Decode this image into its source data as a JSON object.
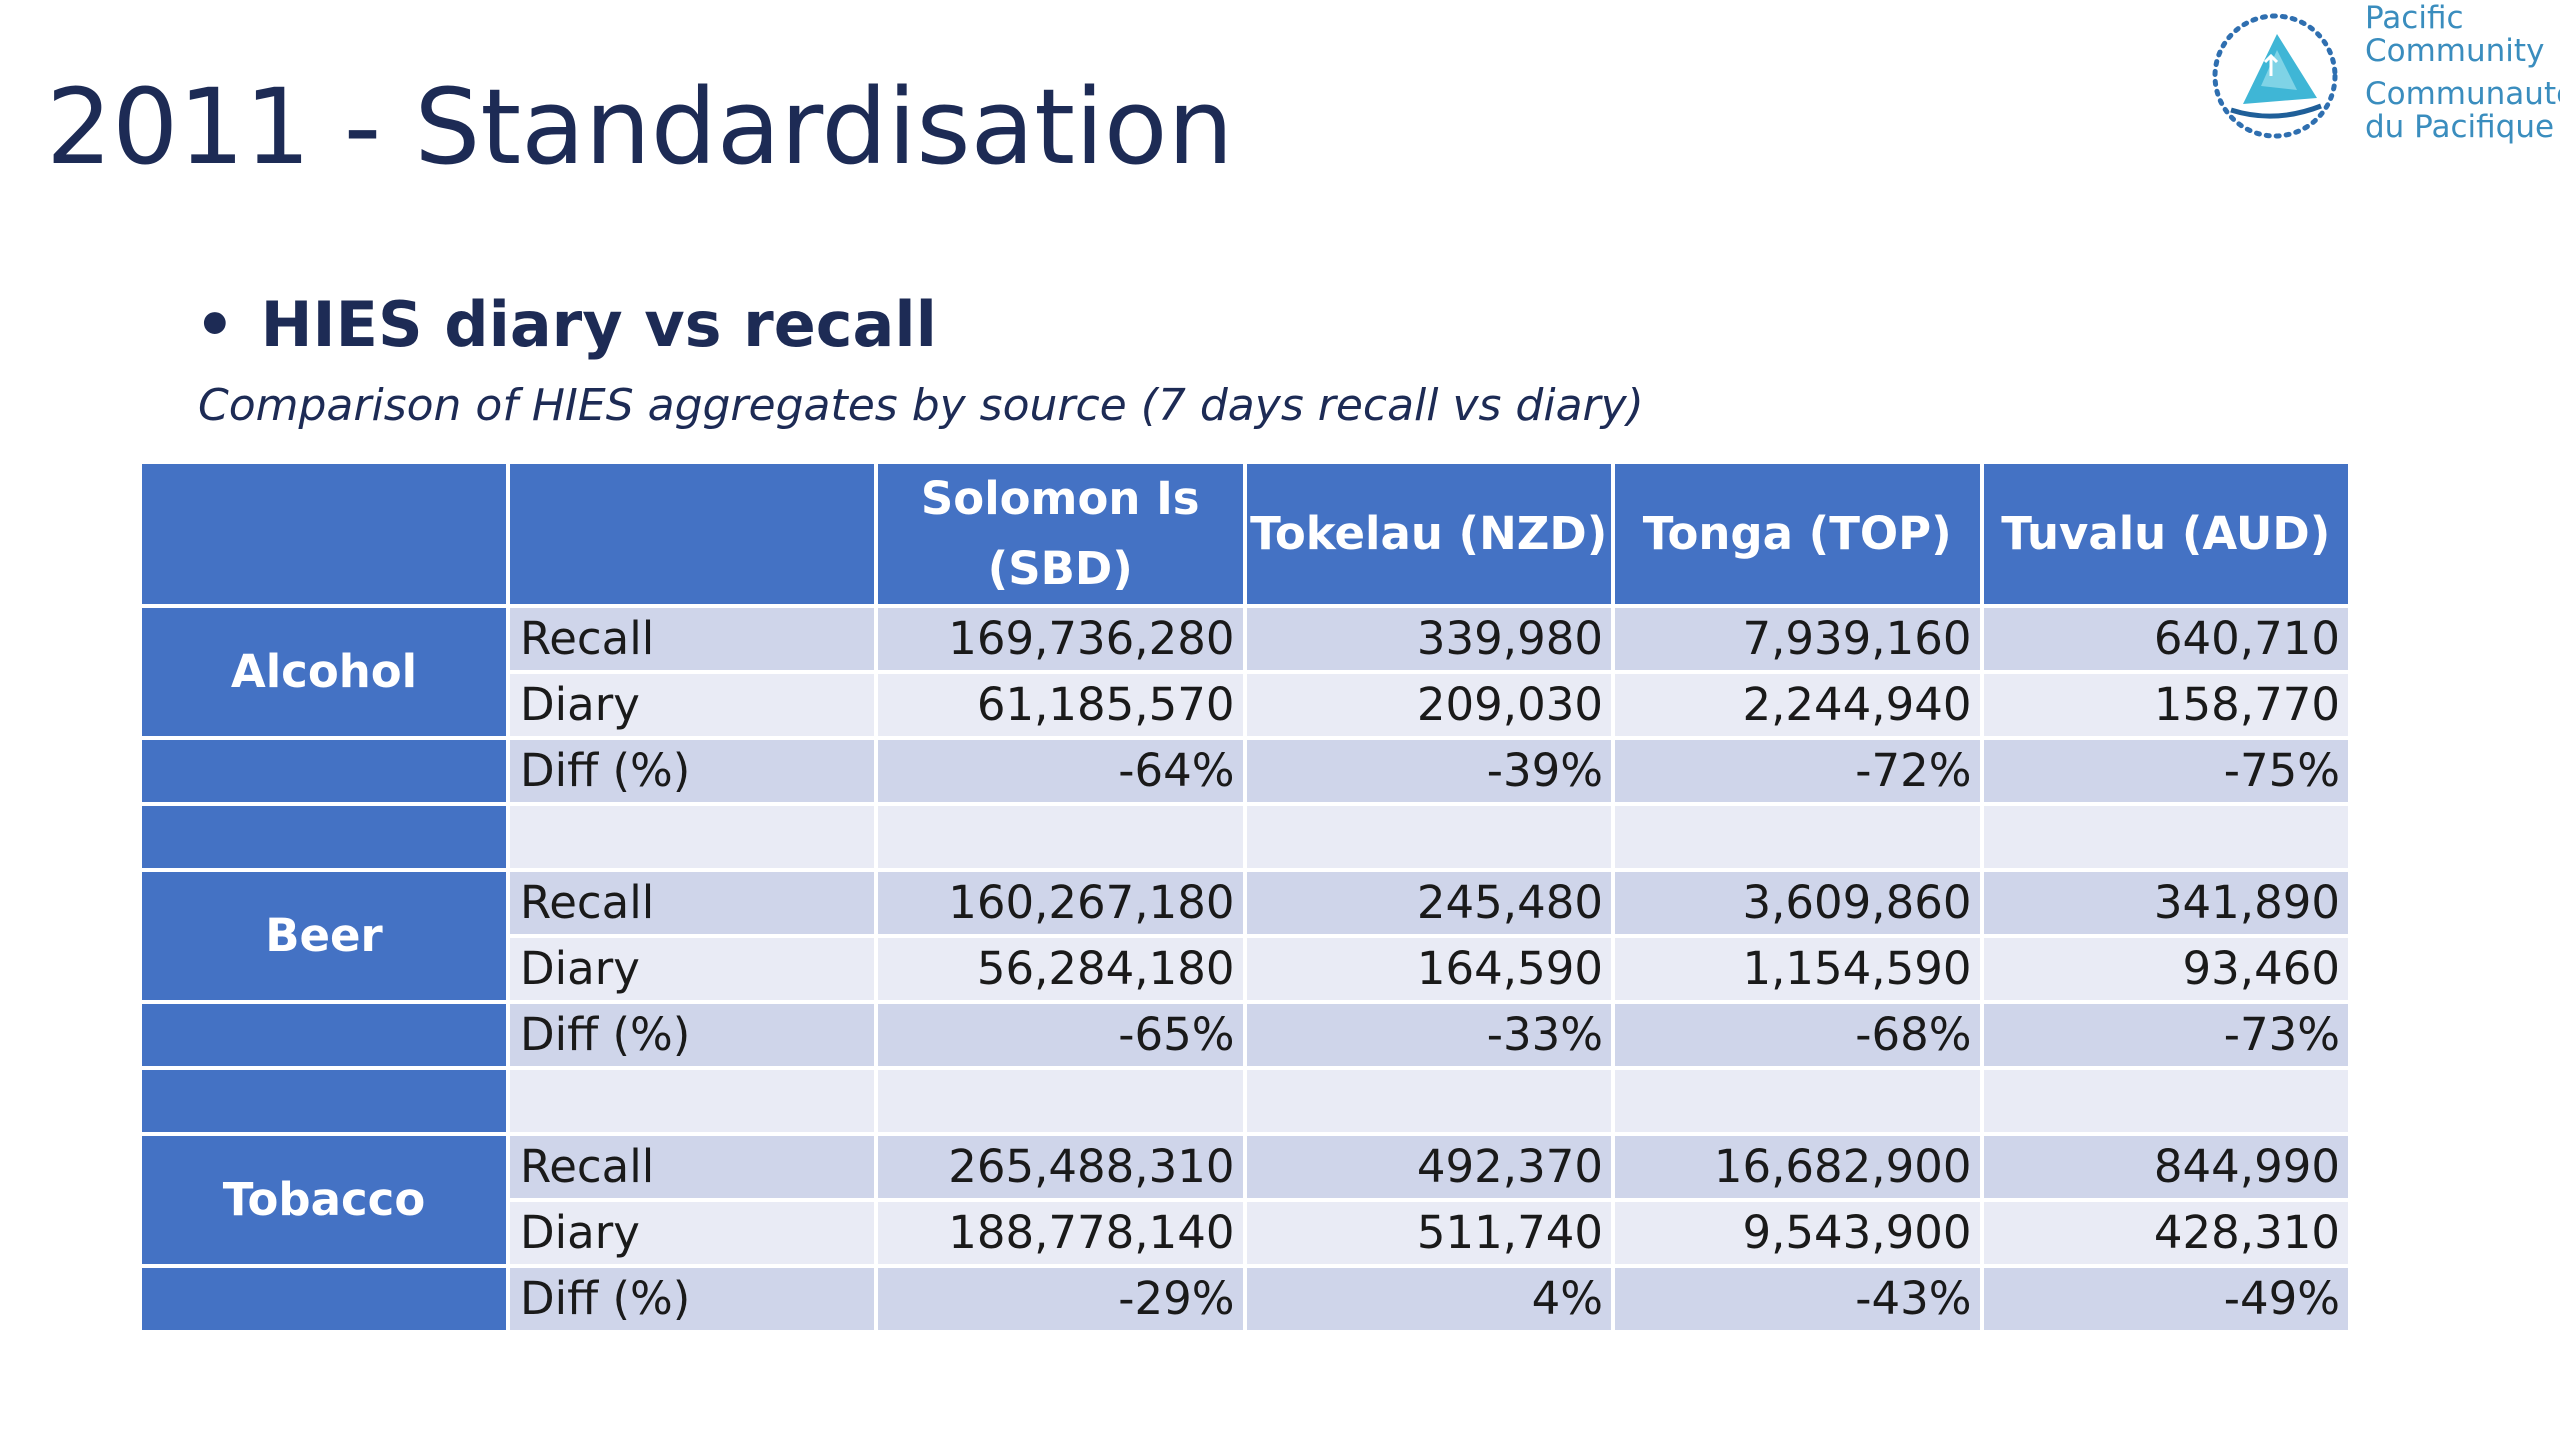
{
  "slide": {
    "title": "2011 - Standardisation",
    "bullet": "•",
    "heading": "HIES diary vs recall",
    "subtitle": "Comparison of HIES aggregates by source (7 days recall vs diary)"
  },
  "logo": {
    "line1": "Pacific",
    "line2": "Community",
    "line3": "Communauté",
    "line4": "du Pacifique",
    "color": "#3a8dbe"
  },
  "colors": {
    "header_bg": "#4472c4",
    "row_dark": "#cfd5ea",
    "row_light": "#e9ebf5",
    "title_text": "#1d2b55"
  },
  "table": {
    "headers": [
      "",
      "",
      "Solomon Is (SBD)",
      "Tokelau (NZD)",
      "Tonga (TOP)",
      "Tuvalu (AUD)"
    ],
    "groups": [
      {
        "category": "Alcohol",
        "rows": [
          {
            "label": "Recall",
            "values": [
              "169,736,280",
              "339,980",
              "7,939,160",
              "640,710"
            ]
          },
          {
            "label": "Diary",
            "values": [
              "61,185,570",
              "209,030",
              "2,244,940",
              "158,770"
            ]
          },
          {
            "label": "Diff (%)",
            "values": [
              "-64%",
              "-39%",
              "-72%",
              "-75%"
            ]
          }
        ]
      },
      {
        "category": "Beer",
        "rows": [
          {
            "label": "Recall",
            "values": [
              "160,267,180",
              "245,480",
              "3,609,860",
              "341,890"
            ]
          },
          {
            "label": "Diary",
            "values": [
              "56,284,180",
              "164,590",
              "1,154,590",
              "93,460"
            ]
          },
          {
            "label": "Diff (%)",
            "values": [
              "-65%",
              "-33%",
              "-68%",
              "-73%"
            ]
          }
        ]
      },
      {
        "category": "Tobacco",
        "rows": [
          {
            "label": "Recall",
            "values": [
              "265,488,310",
              "492,370",
              "16,682,900",
              "844,990"
            ]
          },
          {
            "label": "Diary",
            "values": [
              "188,778,140",
              "511,740",
              "9,543,900",
              "428,310"
            ]
          },
          {
            "label": "Diff (%)",
            "values": [
              "-29%",
              "4%",
              "-43%",
              "-49%"
            ]
          }
        ]
      }
    ]
  }
}
